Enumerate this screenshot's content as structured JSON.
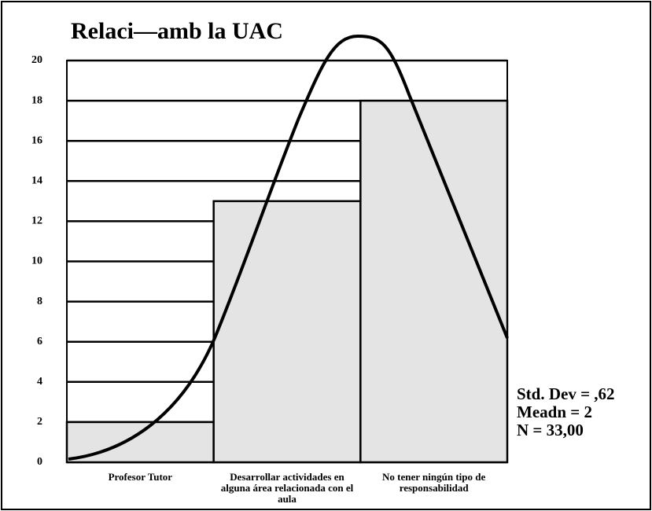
{
  "chart_data": {
    "type": "bar",
    "title": "Relaci—amb la UAC",
    "categories": [
      "Profesor Tutor",
      "Desarrollar actividades en alguna área relacionada con el aula",
      "No tener ningún tipo de responsabilidad"
    ],
    "values": [
      2,
      13,
      18
    ],
    "color": "#e4e4e4",
    "ylim": [
      0,
      20
    ],
    "yticks": [
      0,
      2,
      4,
      6,
      8,
      10,
      12,
      14,
      16,
      18,
      20
    ],
    "grid": true,
    "annotations": [
      "Std. Dev = ,62",
      "Meadn = 2",
      "N = 33,00"
    ]
  }
}
